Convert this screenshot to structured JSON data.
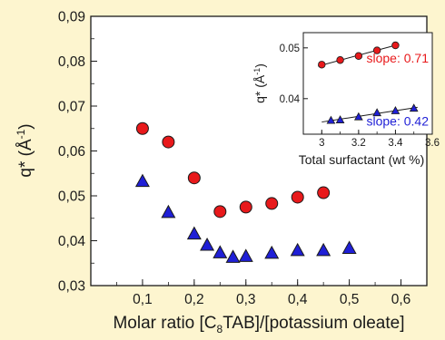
{
  "chart_data": [
    {
      "type": "scatter",
      "xlabel_prefix": "Molar ratio [C",
      "xlabel_subscript": "8",
      "xlabel_suffix": "TAB]/[potassium oleate]",
      "ylabel": "q* (Å",
      "ylabel_exponent": "-1",
      "ylabel_close": ")",
      "xlim": [
        0,
        0.65
      ],
      "ylim": [
        0.03,
        0.09
      ],
      "xticks": [
        "0,1",
        "0,2",
        "0,3",
        "0,4",
        "0,5",
        "0,6"
      ],
      "yticks": [
        "0,03",
        "0,04",
        "0,05",
        "0,06",
        "0,07",
        "0,08",
        "0,09"
      ],
      "series": [
        {
          "marker": "circle",
          "color": "#e8191b",
          "x": [
            0.1,
            0.15,
            0.2,
            0.25,
            0.3,
            0.35,
            0.4,
            0.45
          ],
          "y": [
            0.065,
            0.062,
            0.054,
            0.0465,
            0.0475,
            0.0483,
            0.0497,
            0.0507
          ]
        },
        {
          "marker": "triangle",
          "color": "#1f1fd6",
          "x": [
            0.1,
            0.15,
            0.2,
            0.225,
            0.25,
            0.275,
            0.3,
            0.35,
            0.4,
            0.45,
            0.5
          ],
          "y": [
            0.0532,
            0.0463,
            0.0415,
            0.039,
            0.0373,
            0.0363,
            0.0365,
            0.0372,
            0.0378,
            0.0378,
            0.0383
          ]
        }
      ]
    },
    {
      "type": "scatter",
      "inset": true,
      "xlabel": "Total surfactant (wt %)",
      "ylabel": "q* (Å",
      "ylabel_exponent": "-1",
      "ylabel_close": ")",
      "xlim": [
        2.9,
        3.6
      ],
      "ylim": [
        0.033,
        0.053
      ],
      "xticks": [
        "3",
        "3.2",
        "3.4",
        "3.6"
      ],
      "yticks": [
        "0.04",
        "0.05"
      ],
      "series": [
        {
          "marker": "circle",
          "color": "#e8191b",
          "x": [
            3.0,
            3.1,
            3.2,
            3.3,
            3.4
          ],
          "y": [
            0.0467,
            0.0476,
            0.0484,
            0.0495,
            0.0505
          ],
          "fit_label": "slope: 0.71",
          "fit": [
            [
              2.98,
              0.0464
            ],
            [
              3.42,
              0.0507
            ]
          ]
        },
        {
          "marker": "triangle",
          "color": "#1f1fd6",
          "x": [
            3.05,
            3.1,
            3.2,
            3.3,
            3.4,
            3.5
          ],
          "y": [
            0.0357,
            0.0358,
            0.0364,
            0.0372,
            0.0376,
            0.0381
          ],
          "fit_label": "slope: 0.42",
          "fit": [
            [
              3.0,
              0.0354
            ],
            [
              3.52,
              0.0383
            ]
          ]
        }
      ]
    }
  ]
}
